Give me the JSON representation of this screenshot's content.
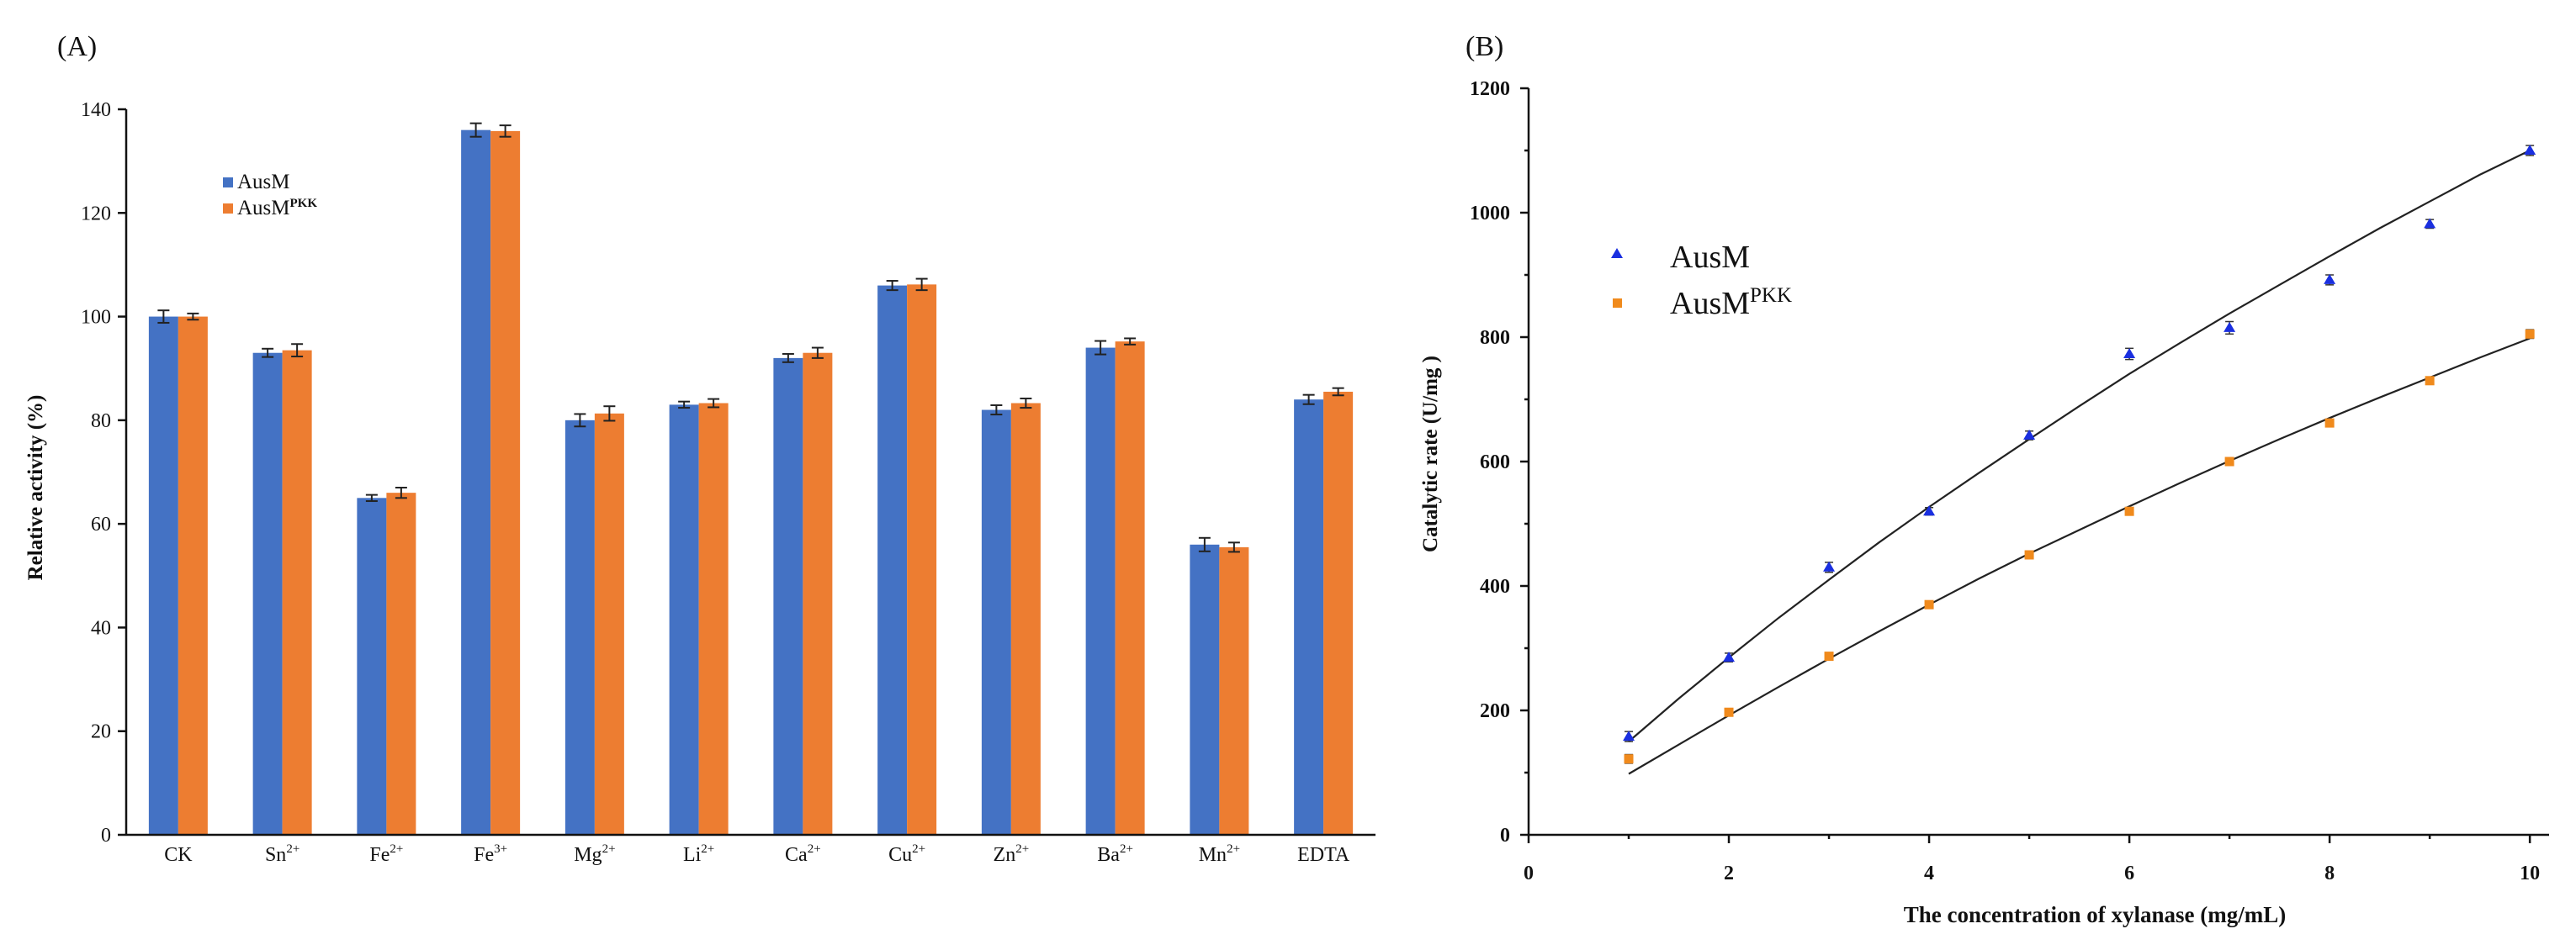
{
  "chart_data": [
    {
      "panel": "(A)",
      "type": "bar",
      "ylabel": "Relative activity (%)",
      "xlabel": "",
      "ylim": [
        0,
        140
      ],
      "yticks": [
        0,
        20,
        40,
        60,
        80,
        100,
        120,
        140
      ],
      "categories": [
        {
          "base": "CK",
          "sup": ""
        },
        {
          "base": "Sn",
          "sup": "2+"
        },
        {
          "base": "Fe",
          "sup": "2+"
        },
        {
          "base": "Fe",
          "sup": "3+"
        },
        {
          "base": "Mg",
          "sup": "2+"
        },
        {
          "base": "Li",
          "sup": "2+"
        },
        {
          "base": "Ca",
          "sup": "2+"
        },
        {
          "base": "Cu",
          "sup": "2+"
        },
        {
          "base": "Zn",
          "sup": "2+"
        },
        {
          "base": "Ba",
          "sup": "2+"
        },
        {
          "base": "Mn",
          "sup": "2+"
        },
        {
          "base": "EDTA",
          "sup": ""
        }
      ],
      "series": [
        {
          "name": "AusM",
          "sup": "",
          "color": "#4472C4",
          "values": [
            100,
            93,
            65,
            136,
            80,
            83,
            92,
            106,
            82,
            94,
            56,
            84
          ],
          "errors": [
            1.2,
            0.8,
            0.6,
            1.3,
            1.2,
            0.6,
            0.8,
            0.9,
            0.9,
            1.3,
            1.3,
            0.9
          ]
        },
        {
          "name": "AusM",
          "sup": "PKK",
          "color": "#ED7D31",
          "values": [
            100,
            93.5,
            66,
            135.8,
            81.3,
            83.3,
            93,
            106.2,
            83.3,
            95.2,
            55.5,
            85.5
          ],
          "errors": [
            0.6,
            1.2,
            1.0,
            1.1,
            1.4,
            0.8,
            1.0,
            1.1,
            0.9,
            0.6,
            0.9,
            0.7
          ]
        }
      ]
    },
    {
      "panel": "(B)",
      "type": "scatter",
      "xlabel": "The concentration of xylanase (mg/mL)",
      "ylabel": "Catalytic rate (U/mg )",
      "xlim": [
        0,
        10
      ],
      "ylim": [
        0,
        1200
      ],
      "xticks": [
        0,
        2,
        4,
        6,
        8,
        10
      ],
      "yticks": [
        0,
        200,
        400,
        600,
        800,
        1000,
        1200
      ],
      "series": [
        {
          "name": "AusM",
          "sup": "",
          "color": "#1a2fe0",
          "marker": "triangle",
          "x": [
            1,
            2,
            3,
            4,
            5,
            6,
            7,
            8,
            9,
            10
          ],
          "y": [
            158,
            285,
            430,
            520,
            642,
            773,
            815,
            892,
            982,
            1100
          ],
          "errors": [
            8,
            7,
            8,
            6,
            7,
            9,
            10,
            8,
            7,
            8
          ],
          "fit_x": [
            1,
            1.5,
            2,
            2.5,
            3,
            3.5,
            4,
            4.5,
            5,
            5.5,
            6,
            6.5,
            7,
            7.5,
            8,
            8.5,
            9,
            9.5,
            10
          ],
          "fit_y": [
            150,
            219,
            285,
            349,
            410,
            470,
            527,
            582,
            636,
            689,
            741,
            790,
            838,
            884,
            930,
            975,
            1018,
            1061,
            1100
          ]
        },
        {
          "name": "AusM",
          "sup": "PKK",
          "color": "#f08a1c",
          "marker": "square",
          "x": [
            1,
            2,
            3,
            4,
            5,
            6,
            7,
            8,
            9,
            10
          ],
          "y": [
            122,
            197,
            287,
            370,
            450,
            520,
            600,
            662,
            730,
            805
          ],
          "errors": [
            7,
            5,
            6,
            5,
            5,
            6,
            6,
            6,
            6,
            7
          ],
          "fit_x": [
            1,
            1.5,
            2,
            2.5,
            3,
            3.5,
            4,
            4.5,
            5,
            5.5,
            6,
            6.5,
            7,
            7.5,
            8,
            8.5,
            9,
            9.5,
            10
          ],
          "fit_y": [
            98,
            145,
            192,
            238,
            283,
            327,
            370,
            412,
            452,
            490,
            528,
            565,
            601,
            636,
            670,
            703,
            735,
            767,
            798
          ]
        }
      ]
    }
  ]
}
